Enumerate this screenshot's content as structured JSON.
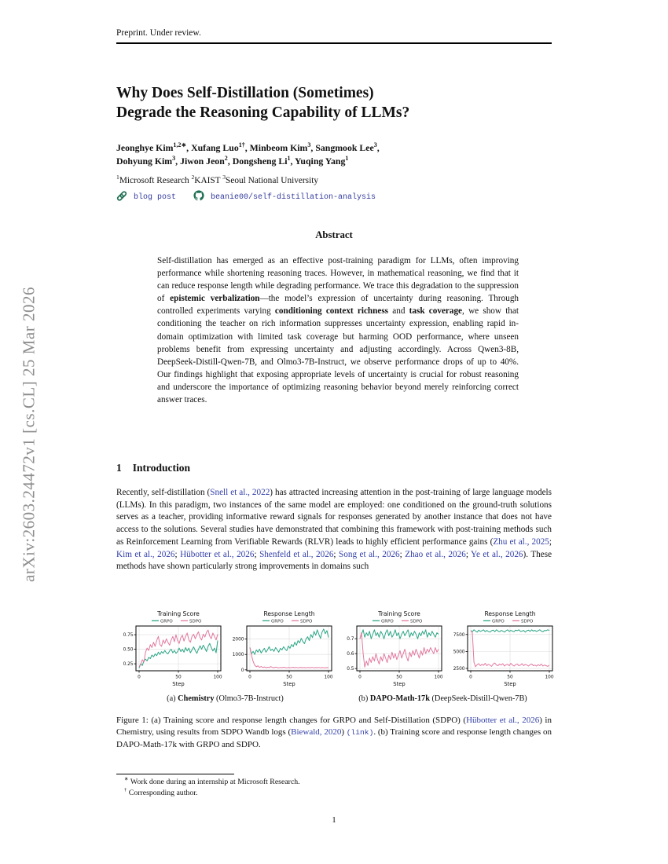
{
  "colors": {
    "grpo_green": "#2ba585",
    "sdpo_pink": "#e2799f",
    "citation_blue": "#3340a8",
    "icon_green": "#1f6f52",
    "watermark_gray": "#8e8e8e"
  },
  "page": {
    "header": "Preprint. Under review.",
    "page_number": "1",
    "watermark": "arXiv:2603.24472v1  [cs.CL]  25 Mar 2026"
  },
  "title": {
    "line1": "Why Does Self-Distillation (Sometimes)",
    "line2": "Degrade the Reasoning Capability of LLMs?"
  },
  "authors": {
    "line1": [
      {
        "t": "Jeonghye Kim",
        "s": ""
      },
      {
        "t": "1,2∗",
        "s": "sup"
      },
      {
        "t": ", ",
        "s": ""
      },
      {
        "t": "Xufang Luo",
        "s": ""
      },
      {
        "t": "1†",
        "s": "sup"
      },
      {
        "t": ", ",
        "s": ""
      },
      {
        "t": "Minbeom Kim",
        "s": ""
      },
      {
        "t": "3",
        "s": "sup"
      },
      {
        "t": ", ",
        "s": ""
      },
      {
        "t": "Sangmook Lee",
        "s": ""
      },
      {
        "t": "3",
        "s": "sup"
      },
      {
        "t": ",",
        "s": ""
      }
    ],
    "line2": [
      {
        "t": "Dohyung Kim",
        "s": ""
      },
      {
        "t": "3",
        "s": "sup"
      },
      {
        "t": ", ",
        "s": ""
      },
      {
        "t": "Jiwon Jeon",
        "s": ""
      },
      {
        "t": "2",
        "s": "sup"
      },
      {
        "t": ", ",
        "s": ""
      },
      {
        "t": "Dongsheng Li",
        "s": ""
      },
      {
        "t": "1",
        "s": "sup"
      },
      {
        "t": ", ",
        "s": ""
      },
      {
        "t": "Yuqing Yang",
        "s": ""
      },
      {
        "t": "1",
        "s": "sup"
      }
    ],
    "affiliations": [
      {
        "t": "1",
        "s": "sup"
      },
      {
        "t": "Microsoft Research  ",
        "s": ""
      },
      {
        "t": "2",
        "s": "sup"
      },
      {
        "t": "KAIST  ",
        "s": ""
      },
      {
        "t": "3",
        "s": "sup"
      },
      {
        "t": "Seoul National University",
        "s": ""
      }
    ]
  },
  "links": {
    "blog_label": "blog post",
    "repo_label": "beanie00/self-distillation-analysis"
  },
  "abstract": {
    "heading": "Abstract",
    "body": [
      {
        "t": "Self-distillation has emerged as an effective post-training paradigm for LLMs, often improving performance while shortening reasoning traces. However, in mathematical reasoning, we find that it can reduce response length while degrading performance. We trace this degradation to the suppression of ",
        "s": ""
      },
      {
        "t": "epistemic verbalization",
        "s": "b"
      },
      {
        "t": "—the model’s expression of uncertainty during reasoning. Through controlled experiments varying ",
        "s": ""
      },
      {
        "t": "conditioning context richness",
        "s": "b"
      },
      {
        "t": " and ",
        "s": ""
      },
      {
        "t": "task coverage",
        "s": "b"
      },
      {
        "t": ", we show that conditioning the teacher on rich information suppresses uncertainty expression, enabling rapid in-domain optimization with limited task coverage but harming OOD performance, where unseen problems benefit from expressing uncertainty and adjusting accordingly. Across Qwen3-8B, DeepSeek-Distill-Qwen-7B, and Olmo3-7B-Instruct, we observe performance drops of up to 40%. Our findings highlight that exposing appropriate levels of uncertainty is crucial for robust reasoning and underscore the importance of optimizing reasoning behavior beyond merely reinforcing correct answer traces.",
        "s": ""
      }
    ]
  },
  "intro": {
    "number": "1",
    "heading": "Introduction",
    "paragraph": [
      {
        "t": "Recently, self-distillation (",
        "s": ""
      },
      {
        "t": "Snell et al., 2022",
        "s": "link"
      },
      {
        "t": ") has attracted increasing attention in the post-training of large language models (LLMs).  In this paradigm, two instances of the same model are employed: one conditioned on the ground-truth solutions serves as a teacher, providing informative reward signals for responses generated by another instance that does not have access to the solutions. Several studies have demonstrated that combining this framework with post-training methods such as Reinforcement Learning from Verifiable Rewards (RLVR) leads to highly efficient performance gains (",
        "s": ""
      },
      {
        "t": "Zhu et al., 2025",
        "s": "link"
      },
      {
        "t": "; ",
        "s": ""
      },
      {
        "t": "Kim et al., 2026",
        "s": "link"
      },
      {
        "t": "; ",
        "s": ""
      },
      {
        "t": "Hübotter et al., 2026",
        "s": "link"
      },
      {
        "t": "; ",
        "s": ""
      },
      {
        "t": "Shenfeld et al., 2026",
        "s": "link"
      },
      {
        "t": "; ",
        "s": ""
      },
      {
        "t": "Song et al., 2026",
        "s": "link"
      },
      {
        "t": "; ",
        "s": ""
      },
      {
        "t": "Zhao et al., 2026",
        "s": "link"
      },
      {
        "t": "; ",
        "s": ""
      },
      {
        "t": "Ye et al., 2026",
        "s": "link"
      },
      {
        "t": ").  These methods have shown particularly strong improvements in domains such",
        "s": ""
      }
    ]
  },
  "figure": {
    "subcaption_a": [
      {
        "t": "(a) ",
        "s": ""
      },
      {
        "t": "Chemistry",
        "s": "b"
      },
      {
        "t": " (Olmo3-7B-Instruct)",
        "s": ""
      }
    ],
    "subcaption_b": [
      {
        "t": "(b) ",
        "s": ""
      },
      {
        "t": "DAPO-Math-17k",
        "s": "b"
      },
      {
        "t": " (DeepSeek-Distill-Qwen-7B)",
        "s": ""
      }
    ],
    "caption": [
      {
        "t": "Figure 1: (a) Training score and response length changes for GRPO and Self-Distillation (SDPO) (",
        "s": ""
      },
      {
        "t": "Hübotter et al., 2026",
        "s": "link"
      },
      {
        "t": ") in Chemistry, using results from SDPO Wandb logs (",
        "s": ""
      },
      {
        "t": "Biewald, 2020",
        "s": "link"
      },
      {
        "t": ") ",
        "s": ""
      },
      {
        "t": "(link)",
        "s": "mlink"
      },
      {
        "t": ".  (b) Training score and response length changes on DAPO-Math-17k with GRPO and SDPO.",
        "s": ""
      }
    ]
  },
  "footnotes": [
    {
      "sym": "∗",
      "text": "Work done during an internship at Microsoft Research."
    },
    {
      "sym": "†",
      "text": "Corresponding author."
    }
  ],
  "chart_data": [
    {
      "type": "line",
      "title": "Training Score",
      "xlabel": "Step",
      "xlim": [
        -4,
        104
      ],
      "xticks": [
        0,
        50,
        100
      ],
      "ylim": [
        0.13,
        0.9
      ],
      "yticks": [
        0.25,
        0.5,
        0.75
      ],
      "ytick_labels": [
        "0.25",
        "0.50",
        "0.75"
      ],
      "legend_position": "top",
      "grid": true,
      "series": [
        {
          "name": "GRPO",
          "color": "#2ba585",
          "values": [
            0.18,
            0.25,
            0.22,
            0.3,
            0.33,
            0.3,
            0.36,
            0.34,
            0.4,
            0.37,
            0.42,
            0.39,
            0.45,
            0.41,
            0.46,
            0.43,
            0.48,
            0.44,
            0.42,
            0.47,
            0.5,
            0.44,
            0.48,
            0.43,
            0.46,
            0.52,
            0.46,
            0.5,
            0.45,
            0.53,
            0.47,
            0.52,
            0.44,
            0.49,
            0.54,
            0.48,
            0.43,
            0.5,
            0.56,
            0.5,
            0.57,
            0.52,
            0.46,
            0.55,
            0.6,
            0.53,
            0.47,
            0.52,
            0.44,
            0.65
          ]
        },
        {
          "name": "SDPO",
          "color": "#e2799f",
          "values": [
            0.2,
            0.24,
            0.32,
            0.28,
            0.45,
            0.52,
            0.48,
            0.58,
            0.53,
            0.62,
            0.55,
            0.65,
            0.72,
            0.58,
            0.55,
            0.66,
            0.6,
            0.68,
            0.62,
            0.57,
            0.66,
            0.72,
            0.63,
            0.75,
            0.65,
            0.6,
            0.7,
            0.74,
            0.64,
            0.72,
            0.78,
            0.66,
            0.62,
            0.72,
            0.76,
            0.68,
            0.75,
            0.8,
            0.7,
            0.66,
            0.76,
            0.71,
            0.79,
            0.83,
            0.73,
            0.68,
            0.78,
            0.72,
            0.66,
            0.76
          ]
        }
      ]
    },
    {
      "type": "line",
      "title": "Response Length",
      "xlabel": "Step",
      "xlim": [
        -4,
        104
      ],
      "xticks": [
        0,
        50,
        100
      ],
      "ylim": [
        -60,
        2850
      ],
      "yticks": [
        0,
        1000,
        2000
      ],
      "ytick_labels": [
        "0",
        "1000",
        "2000"
      ],
      "legend_position": "top",
      "grid": true,
      "series": [
        {
          "name": "GRPO",
          "color": "#2ba585",
          "values": [
            1450,
            1050,
            1200,
            1000,
            1300,
            1150,
            1350,
            1100,
            1250,
            1400,
            1150,
            1300,
            1500,
            1250,
            1350,
            1200,
            1450,
            1300,
            1150,
            1400,
            1300,
            1500,
            1350,
            1250,
            1550,
            1400,
            1650,
            1500,
            1800,
            1600,
            1900,
            1750,
            2050,
            1850,
            1700,
            2000,
            2150,
            1900,
            2300,
            2100,
            2500,
            2250,
            2600,
            2300,
            2050,
            2450,
            2650,
            2350,
            2550,
            2100
          ]
        },
        {
          "name": "SDPO",
          "color": "#e2799f",
          "values": [
            1450,
            950,
            550,
            300,
            200,
            260,
            160,
            220,
            150,
            190,
            140,
            170,
            150,
            210,
            160,
            140,
            180,
            150,
            130,
            160,
            140,
            170,
            150,
            130,
            160,
            140,
            150,
            170,
            140,
            160,
            130,
            150,
            160,
            140,
            150,
            130,
            160,
            140,
            150,
            160,
            130,
            150,
            140,
            160,
            130,
            150,
            140,
            130,
            150,
            140
          ]
        }
      ]
    },
    {
      "type": "line",
      "title": "Training Score",
      "xlabel": "Step",
      "xlim": [
        -4,
        104
      ],
      "xticks": [
        0,
        50,
        100
      ],
      "ylim": [
        0.485,
        0.785
      ],
      "yticks": [
        0.5,
        0.6,
        0.7
      ],
      "ytick_labels": [
        "0.5",
        "0.6",
        "0.7"
      ],
      "legend_position": "top",
      "grid": true,
      "series": [
        {
          "name": "GRPO",
          "color": "#2ba585",
          "values": [
            0.7,
            0.73,
            0.76,
            0.71,
            0.74,
            0.72,
            0.75,
            0.7,
            0.73,
            0.76,
            0.72,
            0.74,
            0.71,
            0.75,
            0.73,
            0.7,
            0.74,
            0.76,
            0.72,
            0.75,
            0.71,
            0.73,
            0.76,
            0.72,
            0.74,
            0.7,
            0.73,
            0.75,
            0.72,
            0.74,
            0.76,
            0.71,
            0.74,
            0.72,
            0.75,
            0.73,
            0.7,
            0.74,
            0.72,
            0.75,
            0.73,
            0.76,
            0.71,
            0.74,
            0.72,
            0.75,
            0.73,
            0.71,
            0.74,
            0.73
          ]
        },
        {
          "name": "SDPO",
          "color": "#e2799f",
          "values": [
            0.7,
            0.74,
            0.6,
            0.51,
            0.55,
            0.52,
            0.57,
            0.54,
            0.58,
            0.55,
            0.6,
            0.56,
            0.53,
            0.58,
            0.55,
            0.6,
            0.57,
            0.54,
            0.59,
            0.56,
            0.61,
            0.57,
            0.6,
            0.56,
            0.59,
            0.62,
            0.57,
            0.6,
            0.63,
            0.58,
            0.55,
            0.61,
            0.58,
            0.62,
            0.59,
            0.63,
            0.6,
            0.57,
            0.62,
            0.59,
            0.64,
            0.6,
            0.63,
            0.61,
            0.64,
            0.62,
            0.6,
            0.64,
            0.61,
            0.63
          ]
        }
      ]
    },
    {
      "type": "line",
      "title": "Response Length",
      "xlabel": "Step",
      "xlim": [
        -4,
        104
      ],
      "xticks": [
        0,
        50,
        100
      ],
      "ylim": [
        2150,
        8750
      ],
      "yticks": [
        2500,
        5000,
        7500
      ],
      "ytick_labels": [
        "2500",
        "5000",
        "7500"
      ],
      "legend_position": "top",
      "grid": true,
      "series": [
        {
          "name": "GRPO",
          "color": "#2ba585",
          "values": [
            8100,
            7900,
            8200,
            8000,
            7850,
            8150,
            7950,
            8050,
            8200,
            7900,
            8100,
            7950,
            7850,
            8050,
            8150,
            7900,
            8200,
            8000,
            7900,
            8100,
            8000,
            7850,
            8050,
            8200,
            7950,
            8100,
            8000,
            7900,
            8150,
            8050,
            8200,
            7950,
            8000,
            8100,
            7850,
            8050,
            8150,
            7950,
            8200,
            8000,
            8100,
            7950,
            8050,
            8200,
            8000,
            7900,
            8100,
            8050,
            8200,
            8100
          ]
        },
        {
          "name": "SDPO",
          "color": "#e2799f",
          "values": [
            8050,
            7800,
            3400,
            2750,
            3050,
            3200,
            2900,
            3100,
            2950,
            3250,
            2900,
            3100,
            3000,
            2800,
            3150,
            3300,
            3000,
            2900,
            3150,
            3000,
            3200,
            2850,
            3050,
            3100,
            2900,
            3250,
            3000,
            2850,
            3050,
            3150,
            2900,
            3000,
            3200,
            2900,
            3100,
            3000,
            2850,
            3050,
            3150,
            2900,
            3000,
            2850,
            3050,
            2900,
            3150,
            2850,
            3000,
            2900,
            2800,
            3000
          ]
        }
      ]
    }
  ]
}
